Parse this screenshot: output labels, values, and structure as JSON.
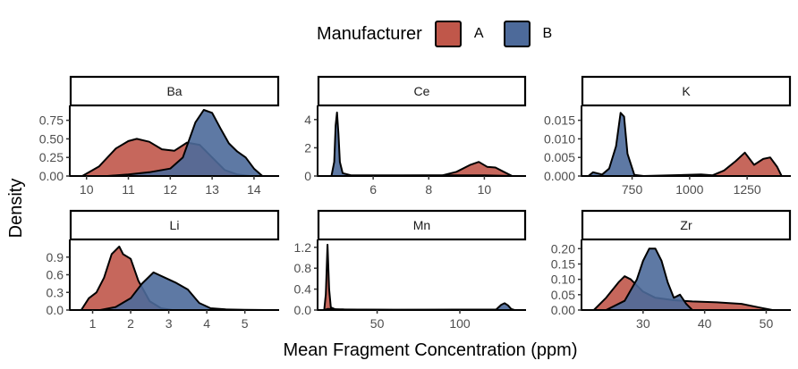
{
  "chart_data": {
    "type": "area",
    "ylabel": "Density",
    "xlabel": "Mean Fragment Concentration (ppm)",
    "legend": {
      "title": "Manufacturer",
      "position": "top",
      "entries": [
        {
          "name": "A",
          "color": "#c0574a"
        },
        {
          "name": "B",
          "color": "#4d6a9a"
        }
      ]
    },
    "grid": false,
    "panels": [
      {
        "title": "Ba",
        "xlim": [
          9.6,
          14.6
        ],
        "ylim": [
          0,
          0.95
        ],
        "xticks": [
          10,
          11,
          12,
          13,
          14
        ],
        "xtick_labels": [
          "10",
          "11",
          "12",
          "13",
          "14"
        ],
        "yticks": [
          0,
          0.25,
          0.5,
          0.75
        ],
        "ytick_labels": [
          "0.00",
          "0.25",
          "0.50",
          "0.75"
        ],
        "series": [
          {
            "name": "A",
            "x": [
              9.9,
              10.3,
              10.7,
              11.0,
              11.2,
              11.5,
              11.8,
              12.1,
              12.4,
              12.7,
              13.0,
              13.3,
              13.6,
              13.9
            ],
            "y": [
              0.0,
              0.13,
              0.37,
              0.47,
              0.5,
              0.46,
              0.36,
              0.34,
              0.45,
              0.42,
              0.25,
              0.08,
              0.02,
              0.0
            ]
          },
          {
            "name": "B",
            "x": [
              10.5,
              11.0,
              11.5,
              12.0,
              12.3,
              12.6,
              12.8,
              13.0,
              13.2,
              13.4,
              13.6,
              13.8,
              14.0,
              14.2
            ],
            "y": [
              0.0,
              0.02,
              0.05,
              0.1,
              0.25,
              0.72,
              0.89,
              0.85,
              0.64,
              0.44,
              0.33,
              0.25,
              0.1,
              0.0
            ]
          }
        ]
      },
      {
        "title": "Ce",
        "xlim": [
          4.0,
          11.5
        ],
        "ylim": [
          0,
          5.0
        ],
        "xticks": [
          6,
          8,
          10
        ],
        "xtick_labels": [
          "6",
          "8",
          "10"
        ],
        "yticks": [
          0,
          2,
          4
        ],
        "ytick_labels": [
          "0",
          "2",
          "4"
        ],
        "series": [
          {
            "name": "A",
            "x": [
              4.5,
              8.5,
              9.0,
              9.5,
              9.8,
              10.1,
              10.4,
              10.7,
              11.0
            ],
            "y": [
              0.0,
              0.05,
              0.3,
              0.8,
              1.0,
              0.65,
              0.6,
              0.3,
              0.0
            ]
          },
          {
            "name": "B",
            "x": [
              4.5,
              4.6,
              4.65,
              4.7,
              4.75,
              4.8,
              4.9,
              5.2,
              9.0,
              10.0,
              11.0
            ],
            "y": [
              0.0,
              1.0,
              3.6,
              4.5,
              3.0,
              1.0,
              0.2,
              0.05,
              0.05,
              0.05,
              0.0
            ]
          }
        ]
      },
      {
        "title": "K",
        "xlim": [
          530,
          1440
        ],
        "ylim": [
          0,
          0.019
        ],
        "xticks": [
          750,
          1000,
          1250
        ],
        "xtick_labels": [
          "750",
          "1000",
          "1250"
        ],
        "yticks": [
          0,
          0.005,
          0.01,
          0.015
        ],
        "ytick_labels": [
          "0.000",
          "0.005",
          "0.010",
          "0.015"
        ],
        "series": [
          {
            "name": "A",
            "x": [
              560,
              800,
              1050,
              1100,
              1150,
              1200,
              1240,
              1280,
              1320,
              1350,
              1380,
              1400
            ],
            "y": [
              0.0,
              0.0,
              0.0004,
              0.0002,
              0.0015,
              0.004,
              0.0063,
              0.003,
              0.0046,
              0.005,
              0.0025,
              0.0
            ]
          },
          {
            "name": "B",
            "x": [
              560,
              580,
              620,
              650,
              680,
              700,
              715,
              730,
              760,
              800
            ],
            "y": [
              0.0,
              0.001,
              0.0004,
              0.002,
              0.008,
              0.017,
              0.016,
              0.006,
              0.0003,
              0.0
            ]
          }
        ]
      },
      {
        "title": "Li",
        "xlim": [
          0.4,
          5.9
        ],
        "ylim": [
          0,
          1.2
        ],
        "xticks": [
          1,
          2,
          3,
          4,
          5
        ],
        "xtick_labels": [
          "1",
          "2",
          "3",
          "4",
          "5"
        ],
        "yticks": [
          0,
          0.3,
          0.6,
          0.9
        ],
        "ytick_labels": [
          "0.0",
          "0.3",
          "0.6",
          "0.9"
        ],
        "series": [
          {
            "name": "A",
            "x": [
              0.7,
              0.9,
              1.1,
              1.3,
              1.5,
              1.7,
              1.8,
              2.0,
              2.2,
              2.5,
              2.8,
              3.1
            ],
            "y": [
              0.0,
              0.2,
              0.3,
              0.55,
              0.95,
              1.08,
              0.95,
              0.87,
              0.5,
              0.15,
              0.03,
              0.0
            ]
          },
          {
            "name": "B",
            "x": [
              1.2,
              1.6,
              2.0,
              2.3,
              2.6,
              2.9,
              3.2,
              3.5,
              3.8,
              4.1,
              4.5,
              5.0,
              5.6
            ],
            "y": [
              0.0,
              0.05,
              0.2,
              0.45,
              0.64,
              0.55,
              0.46,
              0.35,
              0.12,
              0.03,
              0.01,
              0.005,
              0.0
            ]
          }
        ]
      },
      {
        "title": "Mn",
        "xlim": [
          14,
          140
        ],
        "ylim": [
          0,
          1.35
        ],
        "xticks": [
          50,
          100
        ],
        "xtick_labels": [
          "50",
          "100"
        ],
        "yticks": [
          0,
          0.4,
          0.8,
          1.2
        ],
        "ytick_labels": [
          "0.0",
          "0.4",
          "0.8",
          "1.2"
        ],
        "series": [
          {
            "name": "A",
            "x": [
              18,
              19,
              20,
              21,
              22,
              25,
              60,
              130
            ],
            "y": [
              0.0,
              0.3,
              1.25,
              0.4,
              0.05,
              0.01,
              0.005,
              0.0
            ]
          },
          {
            "name": "B",
            "x": [
              18,
              20,
              30,
              60,
              122,
              125,
              127,
              129,
              131,
              133
            ],
            "y": [
              0.0,
              0.02,
              0.01,
              0.005,
              0.01,
              0.1,
              0.13,
              0.09,
              0.02,
              0.0
            ]
          }
        ]
      },
      {
        "title": "Zr",
        "xlim": [
          20,
          54
        ],
        "ylim": [
          0,
          0.23
        ],
        "xticks": [
          30,
          40,
          50
        ],
        "xtick_labels": [
          "30",
          "40",
          "50"
        ],
        "yticks": [
          0,
          0.05,
          0.1,
          0.15,
          0.2
        ],
        "ytick_labels": [
          "0.00",
          "0.05",
          "0.10",
          "0.15",
          "0.20"
        ],
        "series": [
          {
            "name": "A",
            "x": [
              22,
              24,
              26,
              27,
              28,
              30,
              32,
              35,
              38,
              42,
              46,
              49,
              51
            ],
            "y": [
              0.0,
              0.04,
              0.09,
              0.11,
              0.1,
              0.06,
              0.04,
              0.032,
              0.028,
              0.025,
              0.02,
              0.008,
              0.0
            ]
          },
          {
            "name": "B",
            "x": [
              24,
              27,
              29,
              30,
              31,
              32,
              33,
              34,
              35,
              36,
              37,
              38
            ],
            "y": [
              0.0,
              0.03,
              0.1,
              0.16,
              0.2,
              0.2,
              0.16,
              0.09,
              0.04,
              0.05,
              0.02,
              0.0
            ]
          }
        ]
      }
    ]
  }
}
